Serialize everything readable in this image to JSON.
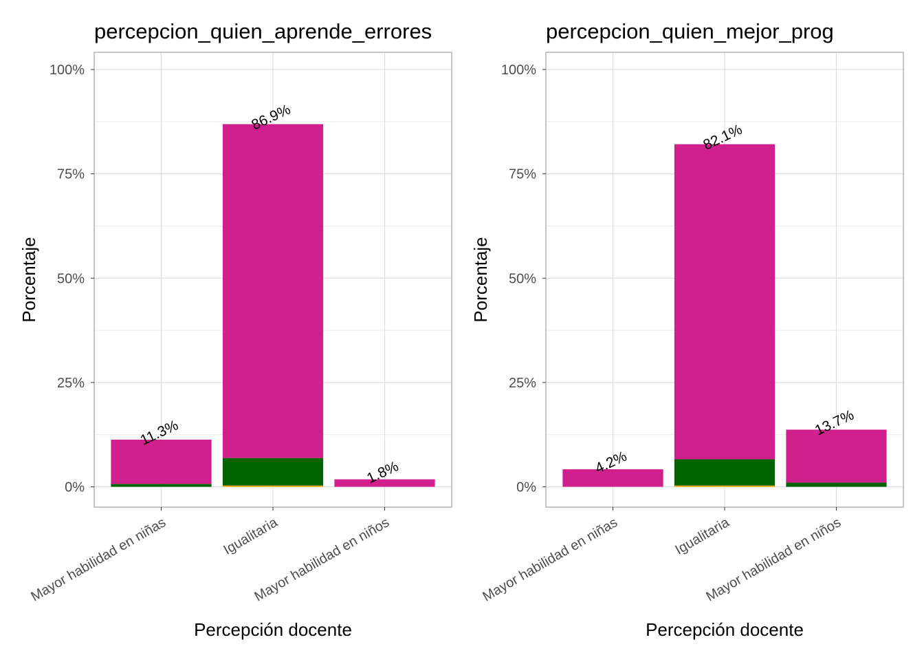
{
  "chart_data": [
    {
      "type": "bar",
      "stacked": true,
      "title": "percepcion_quien_aprende_errores",
      "xlabel": "Percepción docente",
      "ylabel": "Porcentaje",
      "ylim": [
        0,
        100
      ],
      "yticks": [
        "0%",
        "25%",
        "50%",
        "75%",
        "100%"
      ],
      "categories": [
        "Mayor habilidad en niñas",
        "Igualitaria",
        "Mayor habilidad en niños"
      ],
      "series": [
        {
          "color": "#FFA500",
          "values": [
            0,
            0.3,
            0
          ]
        },
        {
          "color": "#006400",
          "values": [
            0.7,
            6.6,
            0
          ]
        },
        {
          "color": "#D0208E",
          "values": [
            10.6,
            80.0,
            1.8
          ]
        }
      ],
      "totals": [
        11.3,
        86.9,
        1.8
      ],
      "labels": [
        "11.3%",
        "86.9%",
        "1.8%"
      ],
      "grid": true,
      "legend": "none"
    },
    {
      "type": "bar",
      "stacked": true,
      "title": "percepcion_quien_mejor_prog",
      "xlabel": "Percepción docente",
      "ylabel": "Porcentaje",
      "ylim": [
        0,
        100
      ],
      "yticks": [
        "0%",
        "25%",
        "50%",
        "75%",
        "100%"
      ],
      "categories": [
        "Mayor habilidad en niñas",
        "Igualitaria",
        "Mayor habilidad en niños"
      ],
      "series": [
        {
          "color": "#FFA500",
          "values": [
            0,
            0.3,
            0
          ]
        },
        {
          "color": "#006400",
          "values": [
            0,
            6.3,
            1.0
          ]
        },
        {
          "color": "#D0208E",
          "values": [
            4.2,
            75.5,
            12.7
          ]
        }
      ],
      "totals": [
        4.2,
        82.1,
        13.7
      ],
      "labels": [
        "4.2%",
        "82.1%",
        "13.7%"
      ],
      "grid": true,
      "legend": "none"
    }
  ]
}
